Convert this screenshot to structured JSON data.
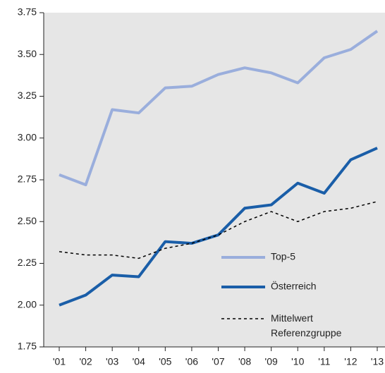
{
  "chart_data": {
    "type": "line",
    "categories": [
      "'01",
      "'02",
      "'03",
      "'04",
      "'05",
      "'06",
      "'07",
      "'08",
      "'09",
      "'10",
      "'11",
      "'12",
      "'13"
    ],
    "series": [
      {
        "name": "Top-5",
        "color": "#9aaedc",
        "values": [
          2.78,
          2.72,
          3.17,
          3.15,
          3.3,
          3.31,
          3.38,
          3.42,
          3.39,
          3.33,
          3.48,
          3.53,
          3.64
        ]
      },
      {
        "name": "Österreich",
        "color": "#1a5ea8",
        "values": [
          2.0,
          2.06,
          2.18,
          2.17,
          2.38,
          2.37,
          2.42,
          2.58,
          2.6,
          2.73,
          2.67,
          2.87,
          2.94
        ]
      },
      {
        "name": "Mittelwert Referenzgruppe",
        "color": "#000000",
        "dashed": true,
        "values": [
          2.32,
          2.3,
          2.3,
          2.28,
          2.34,
          2.37,
          2.42,
          2.5,
          2.56,
          2.5,
          2.56,
          2.58,
          2.62
        ]
      }
    ],
    "ylim": [
      1.75,
      3.75
    ],
    "yticks": [
      {
        "value": 1.75,
        "label": "1.75"
      },
      {
        "value": 2.0,
        "label": "2.00"
      },
      {
        "value": 2.25,
        "label": "2.25"
      },
      {
        "value": 2.5,
        "label": "2.50"
      },
      {
        "value": 2.75,
        "label": "2.75"
      },
      {
        "value": 3.0,
        "label": "3.00"
      },
      {
        "value": 3.25,
        "label": "3.25"
      },
      {
        "value": 3.5,
        "label": "3.50"
      },
      {
        "value": 3.75,
        "label": "3.75"
      }
    ],
    "background": "#e6e6e6"
  }
}
